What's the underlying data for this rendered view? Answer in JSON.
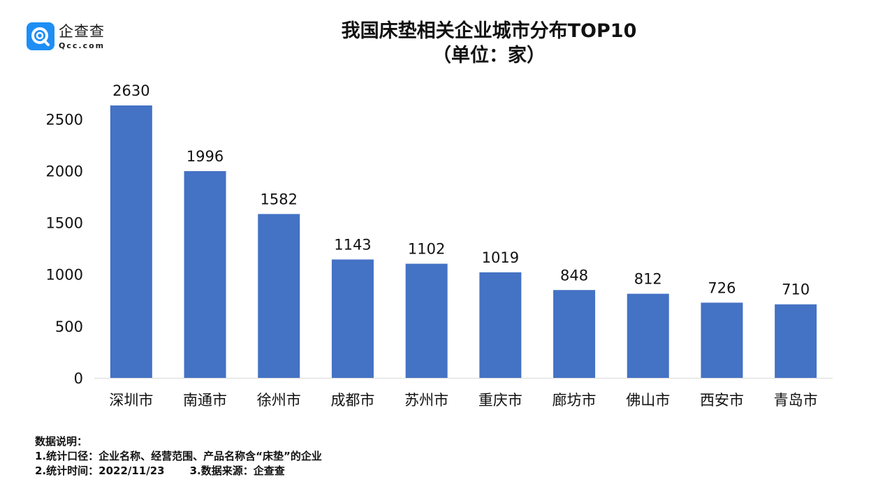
{
  "logo": {
    "name_cn": "企查查",
    "name_en": "Qcc.com",
    "brand_color": "#1e8ef5"
  },
  "title_line1": "我国床垫相关企业城市分布TOP10",
  "title_line2": "（单位：家）",
  "chart_data": {
    "type": "bar",
    "title": "我国床垫相关企业城市分布TOP10",
    "subtitle": "（单位：家）",
    "categories": [
      "深圳市",
      "南通市",
      "徐州市",
      "成都市",
      "苏州市",
      "重庆市",
      "廊坊市",
      "佛山市",
      "西安市",
      "青岛市"
    ],
    "values": [
      2630,
      1996,
      1582,
      1143,
      1102,
      1019,
      848,
      812,
      726,
      710
    ],
    "yticks": [
      0,
      500,
      1000,
      1500,
      2000,
      2500
    ],
    "ylim": [
      0,
      2630
    ],
    "bar_color": "#4472c4",
    "grid": false,
    "legend": "none",
    "data_labels": true
  },
  "notes": {
    "heading": "数据说明：",
    "line1": "1.统计口径：企业名称、经营范围、产品名称含“床垫”的企业",
    "line2a": "2.统计时间：2022/11/23",
    "line2b": "3.数据来源：企查查"
  }
}
